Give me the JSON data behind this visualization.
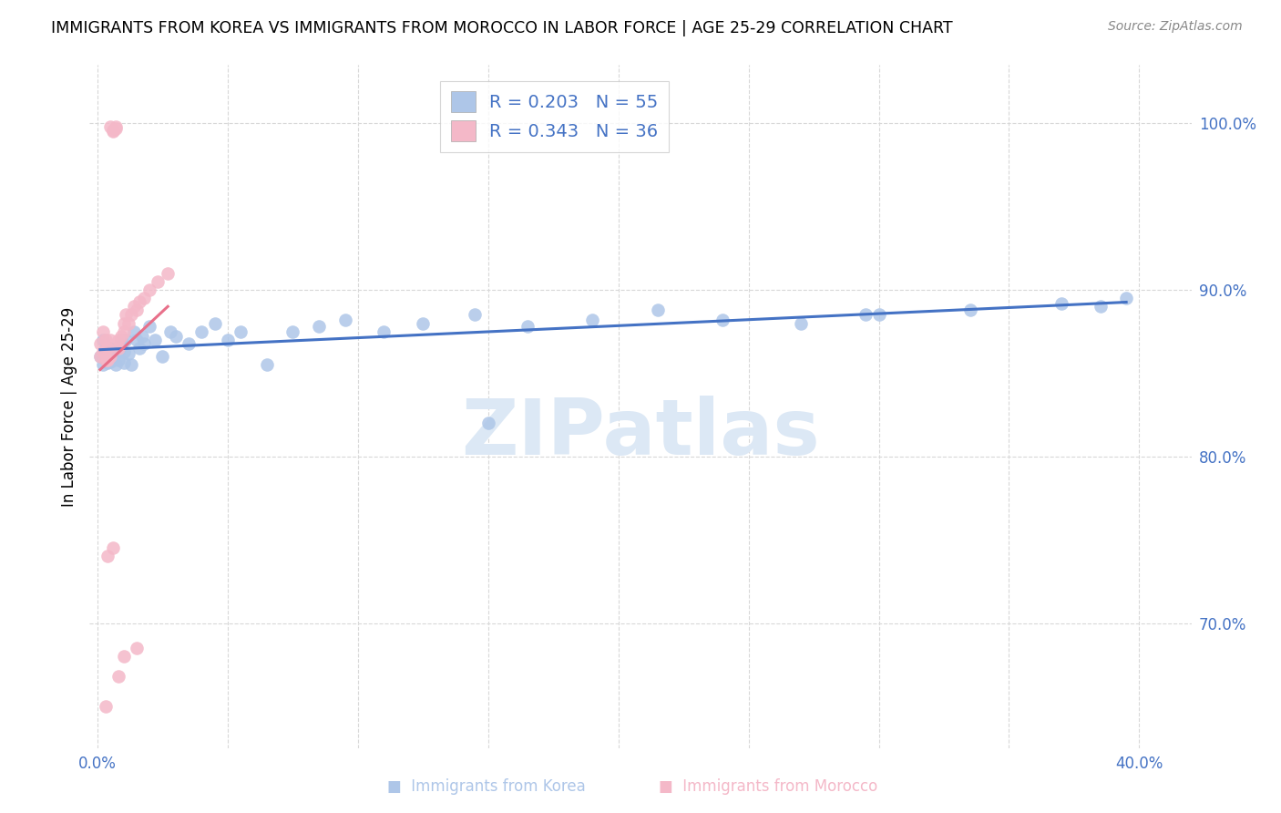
{
  "title": "IMMIGRANTS FROM KOREA VS IMMIGRANTS FROM MOROCCO IN LABOR FORCE | AGE 25-29 CORRELATION CHART",
  "source": "Source: ZipAtlas.com",
  "ylabel": "In Labor Force | Age 25-29",
  "xlim": [
    -0.003,
    0.42
  ],
  "ylim": [
    0.625,
    1.035
  ],
  "xtick_positions": [
    0.0,
    0.05,
    0.1,
    0.15,
    0.2,
    0.25,
    0.3,
    0.35,
    0.4
  ],
  "xticklabels": [
    "0.0%",
    "",
    "",
    "",
    "",
    "",
    "",
    "",
    "40.0%"
  ],
  "ytick_positions": [
    0.7,
    0.8,
    0.9,
    1.0
  ],
  "yticklabels": [
    "70.0%",
    "80.0%",
    "90.0%",
    "100.0%"
  ],
  "korea_color": "#aec6e8",
  "morocco_color": "#f4b8c8",
  "korea_line_color": "#4472c4",
  "morocco_line_color": "#e8708a",
  "watermark_text": "ZIPatlas",
  "watermark_color": "#dce8f5",
  "legend_korea_label": "R = 0.203   N = 55",
  "legend_morocco_label": "R = 0.343   N = 36",
  "bottom_legend_korea": "Immigrants from Korea",
  "bottom_legend_morocco": "Immigrants from Morocco",
  "korea_x": [
    0.001,
    0.002,
    0.002,
    0.003,
    0.003,
    0.004,
    0.004,
    0.005,
    0.005,
    0.006,
    0.006,
    0.007,
    0.007,
    0.008,
    0.008,
    0.009,
    0.01,
    0.01,
    0.011,
    0.012,
    0.013,
    0.014,
    0.015,
    0.016,
    0.017,
    0.018,
    0.02,
    0.022,
    0.025,
    0.028,
    0.03,
    0.035,
    0.04,
    0.045,
    0.05,
    0.055,
    0.065,
    0.075,
    0.085,
    0.095,
    0.11,
    0.125,
    0.145,
    0.165,
    0.19,
    0.215,
    0.24,
    0.27,
    0.3,
    0.335,
    0.37,
    0.395,
    0.385,
    0.295,
    0.15
  ],
  "korea_y": [
    0.86,
    0.855,
    0.87,
    0.865,
    0.858,
    0.862,
    0.856,
    0.865,
    0.857,
    0.862,
    0.858,
    0.865,
    0.855,
    0.863,
    0.858,
    0.87,
    0.863,
    0.856,
    0.87,
    0.862,
    0.855,
    0.875,
    0.87,
    0.865,
    0.872,
    0.868,
    0.878,
    0.87,
    0.86,
    0.875,
    0.872,
    0.868,
    0.875,
    0.88,
    0.87,
    0.875,
    0.855,
    0.875,
    0.878,
    0.882,
    0.875,
    0.88,
    0.885,
    0.878,
    0.882,
    0.888,
    0.882,
    0.88,
    0.885,
    0.888,
    0.892,
    0.895,
    0.89,
    0.885,
    0.82
  ],
  "morocco_x": [
    0.001,
    0.001,
    0.002,
    0.002,
    0.003,
    0.003,
    0.004,
    0.004,
    0.005,
    0.005,
    0.005,
    0.006,
    0.006,
    0.007,
    0.007,
    0.008,
    0.008,
    0.009,
    0.01,
    0.01,
    0.011,
    0.012,
    0.013,
    0.014,
    0.015,
    0.016,
    0.018,
    0.02,
    0.023,
    0.027,
    0.004,
    0.006,
    0.01,
    0.015,
    0.003,
    0.008
  ],
  "morocco_y": [
    0.86,
    0.868,
    0.863,
    0.875,
    0.858,
    0.87,
    0.858,
    0.865,
    0.86,
    0.87,
    0.998,
    0.996,
    0.995,
    0.998,
    0.997,
    0.865,
    0.87,
    0.872,
    0.875,
    0.88,
    0.885,
    0.88,
    0.885,
    0.89,
    0.888,
    0.893,
    0.895,
    0.9,
    0.905,
    0.91,
    0.74,
    0.745,
    0.68,
    0.685,
    0.65,
    0.668
  ]
}
